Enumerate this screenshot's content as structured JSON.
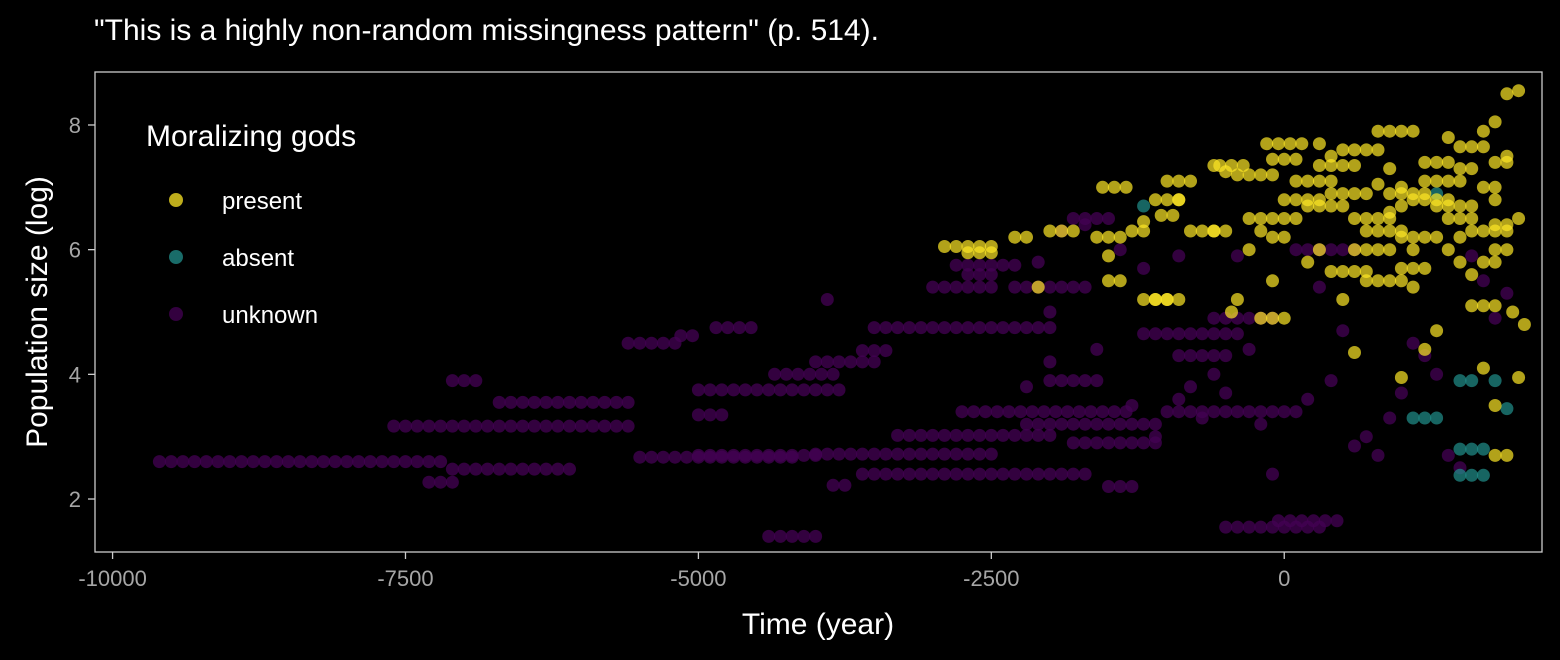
{
  "chart_data": {
    "type": "scatter",
    "title": "\"This is a highly non-random missingness pattern\" (p. 514).",
    "xlabel": "Time (year)",
    "ylabel": "Population size (log)",
    "xlim": [
      -10150,
      2200
    ],
    "ylim": [
      1.15,
      8.85
    ],
    "xticks": [
      -10000,
      -7500,
      -5000,
      -2500,
      0
    ],
    "xtick_labels": [
      "-10000",
      "-7500",
      "-5000",
      "-2500",
      "0"
    ],
    "yticks": [
      2,
      4,
      6,
      8
    ],
    "ytick_labels": [
      "2",
      "4",
      "6",
      "8"
    ],
    "grid": false,
    "legend": {
      "title": "Moralizing gods",
      "position": "top-left inside"
    },
    "series": [
      {
        "name": "unknown",
        "color": "#440154",
        "segments": [
          [
            -9600,
            -7200,
            2.6
          ],
          [
            -7300,
            -7100,
            2.27
          ],
          [
            -7100,
            -6050,
            2.48
          ],
          [
            -7600,
            -5550,
            3.17
          ],
          [
            -6700,
            -5550,
            3.55
          ],
          [
            -7100,
            -6850,
            3.9
          ],
          [
            -5600,
            -5150,
            4.5
          ],
          [
            -5150,
            -5000,
            4.62
          ],
          [
            -5500,
            -4200,
            2.67
          ],
          [
            -5000,
            -3950,
            2.7
          ],
          [
            -5000,
            -4750,
            3.35
          ],
          [
            -5000,
            -3800,
            3.75
          ],
          [
            -4850,
            -4550,
            4.75
          ],
          [
            -4350,
            -3800,
            4.0
          ],
          [
            -4000,
            -3450,
            4.2
          ],
          [
            -3600,
            -3350,
            4.38
          ],
          [
            -4400,
            -3950,
            1.4
          ],
          [
            -3850,
            -3750,
            2.22
          ],
          [
            -4000,
            -2500,
            2.72
          ],
          [
            -3600,
            -1700,
            2.4
          ],
          [
            -3300,
            -2000,
            3.02
          ],
          [
            -2750,
            -1300,
            3.4
          ],
          [
            -2200,
            -1100,
            3.2
          ],
          [
            -1800,
            -1050,
            2.9
          ],
          [
            -3000,
            -2450,
            5.4
          ],
          [
            -2700,
            -2450,
            5.6
          ],
          [
            -3500,
            -2000,
            4.75
          ],
          [
            -2800,
            -2250,
            5.75
          ],
          [
            -1200,
            -400,
            4.65
          ],
          [
            -1000,
            100,
            3.4
          ],
          [
            -1500,
            -1300,
            2.2
          ],
          [
            -900,
            -500,
            4.3
          ],
          [
            -2000,
            -1600,
            3.9
          ],
          [
            -500,
            300,
            1.55
          ],
          [
            -50,
            500,
            1.65
          ],
          [
            100,
            600,
            6.0
          ],
          [
            -2300,
            -1700,
            5.4
          ],
          [
            -1800,
            -1500,
            6.5
          ],
          [
            -600,
            -100,
            4.9
          ]
        ],
        "points": [
          [
            -3900,
            5.2
          ],
          [
            -2000,
            5.0
          ],
          [
            -2100,
            5.8
          ],
          [
            -1900,
            6.3
          ],
          [
            -1700,
            6.4
          ],
          [
            -1400,
            6.0
          ],
          [
            -1200,
            5.7
          ],
          [
            -900,
            5.9
          ],
          [
            -900,
            3.6
          ],
          [
            -700,
            3.3
          ],
          [
            -600,
            4.0
          ],
          [
            -300,
            4.4
          ],
          [
            -500,
            3.7
          ],
          [
            -200,
            3.2
          ],
          [
            -100,
            2.4
          ],
          [
            200,
            3.6
          ],
          [
            400,
            3.9
          ],
          [
            500,
            4.7
          ],
          [
            700,
            3.0
          ],
          [
            800,
            2.7
          ],
          [
            900,
            3.3
          ],
          [
            1000,
            3.7
          ],
          [
            1100,
            4.5
          ],
          [
            1200,
            4.3
          ],
          [
            1300,
            4.0
          ],
          [
            1400,
            2.7
          ],
          [
            1500,
            2.5
          ],
          [
            1600,
            5.9
          ],
          [
            1700,
            5.5
          ],
          [
            1800,
            4.9
          ],
          [
            1900,
            5.3
          ],
          [
            -1100,
            3.0
          ],
          [
            -800,
            3.8
          ],
          [
            -1300,
            3.5
          ],
          [
            -2000,
            4.2
          ],
          [
            -2200,
            3.8
          ],
          [
            -1600,
            4.4
          ],
          [
            -400,
            5.9
          ],
          [
            300,
            5.4
          ],
          [
            600,
            2.85
          ]
        ]
      },
      {
        "name": "absent",
        "color": "#21908C",
        "points": [
          [
            -1200,
            6.7
          ],
          [
            1100,
            3.3
          ],
          [
            1200,
            3.3
          ],
          [
            1300,
            3.3
          ],
          [
            1500,
            3.9
          ],
          [
            1600,
            3.9
          ],
          [
            1500,
            2.8
          ],
          [
            1600,
            2.8
          ],
          [
            1700,
            2.8
          ],
          [
            1500,
            2.38
          ],
          [
            1600,
            2.38
          ],
          [
            1700,
            2.38
          ],
          [
            1800,
            3.9
          ],
          [
            1900,
            3.45
          ],
          [
            1300,
            6.9
          ]
        ]
      },
      {
        "name": "present",
        "color": "#FDE725",
        "segments": [
          [
            -2900,
            -2450,
            6.05
          ],
          [
            -2700,
            -2450,
            5.95
          ],
          [
            -2300,
            -2200,
            6.2
          ],
          [
            -2000,
            -1800,
            6.3
          ],
          [
            -1600,
            -1400,
            6.2
          ],
          [
            -1550,
            -1300,
            7.0
          ],
          [
            -1300,
            -1150,
            6.3
          ],
          [
            -1100,
            -900,
            6.8
          ],
          [
            -1000,
            -750,
            7.1
          ],
          [
            -1050,
            -900,
            6.55
          ],
          [
            -800,
            -500,
            6.3
          ],
          [
            -1100,
            -900,
            5.2
          ],
          [
            -550,
            -300,
            7.35
          ],
          [
            -400,
            -100,
            7.2
          ],
          [
            -150,
            200,
            7.7
          ],
          [
            -100,
            100,
            7.45
          ],
          [
            -300,
            0,
            6.5
          ],
          [
            0,
            300,
            6.8
          ],
          [
            100,
            400,
            7.1
          ],
          [
            300,
            600,
            7.35
          ],
          [
            500,
            800,
            7.6
          ],
          [
            200,
            500,
            6.7
          ],
          [
            400,
            700,
            6.9
          ],
          [
            600,
            900,
            6.5
          ],
          [
            800,
            1100,
            7.9
          ],
          [
            900,
            1200,
            6.9
          ],
          [
            700,
            1000,
            6.3
          ],
          [
            400,
            700,
            5.65
          ],
          [
            600,
            900,
            6.0
          ],
          [
            1000,
            1300,
            6.2
          ],
          [
            1200,
            1500,
            7.1
          ],
          [
            1300,
            1600,
            6.7
          ],
          [
            1400,
            1600,
            6.5
          ],
          [
            1200,
            1400,
            7.4
          ],
          [
            1500,
            1700,
            7.65
          ],
          [
            800,
            1000,
            5.5
          ],
          [
            1000,
            1200,
            5.7
          ],
          [
            -1500,
            -1400,
            5.5
          ],
          [
            -1200,
            -1000,
            5.2
          ],
          [
            -200,
            0,
            4.9
          ],
          [
            1700,
            1800,
            7.0
          ],
          [
            1800,
            1900,
            7.4
          ],
          [
            1800,
            1900,
            6.4
          ],
          [
            1800,
            1900,
            6.0
          ],
          [
            1700,
            1850,
            5.8
          ],
          [
            1600,
            1800,
            5.1
          ],
          [
            1600,
            1900,
            6.3
          ],
          [
            1100,
            1400,
            6.8
          ]
        ],
        "points": [
          [
            -2100,
            5.4
          ],
          [
            -1500,
            5.9
          ],
          [
            -1200,
            6.45
          ],
          [
            -900,
            6.8
          ],
          [
            -600,
            6.3
          ],
          [
            -450,
            5.0
          ],
          [
            -400,
            5.2
          ],
          [
            -300,
            6.0
          ],
          [
            -200,
            6.3
          ],
          [
            -100,
            5.5
          ],
          [
            -100,
            6.2
          ],
          [
            0,
            6.2
          ],
          [
            100,
            6.5
          ],
          [
            200,
            5.8
          ],
          [
            300,
            6.0
          ],
          [
            500,
            5.2
          ],
          [
            600,
            4.35
          ],
          [
            700,
            5.5
          ],
          [
            800,
            7.05
          ],
          [
            900,
            7.3
          ],
          [
            1000,
            7.0
          ],
          [
            1100,
            6.0
          ],
          [
            1200,
            4.4
          ],
          [
            1300,
            4.7
          ],
          [
            1400,
            7.8
          ],
          [
            1500,
            7.3
          ],
          [
            1600,
            7.3
          ],
          [
            1700,
            7.9
          ],
          [
            1800,
            8.05
          ],
          [
            1900,
            7.5
          ],
          [
            2000,
            6.5
          ],
          [
            1700,
            4.1
          ],
          [
            1800,
            3.5
          ],
          [
            1900,
            2.7
          ],
          [
            1800,
            2.7
          ],
          [
            1000,
            3.95
          ],
          [
            2000,
            3.95
          ],
          [
            1950,
            5.0
          ],
          [
            2050,
            4.8
          ],
          [
            1900,
            8.5
          ],
          [
            2000,
            8.55
          ],
          [
            1800,
            6.8
          ],
          [
            1500,
            5.8
          ],
          [
            1600,
            5.6
          ],
          [
            1400,
            6.0
          ],
          [
            -600,
            7.35
          ],
          [
            -500,
            7.25
          ],
          [
            300,
            7.7
          ],
          [
            400,
            7.5
          ],
          [
            1100,
            5.4
          ],
          [
            1000,
            6.7
          ],
          [
            900,
            6.6
          ],
          [
            1500,
            6.2
          ]
        ]
      }
    ]
  }
}
